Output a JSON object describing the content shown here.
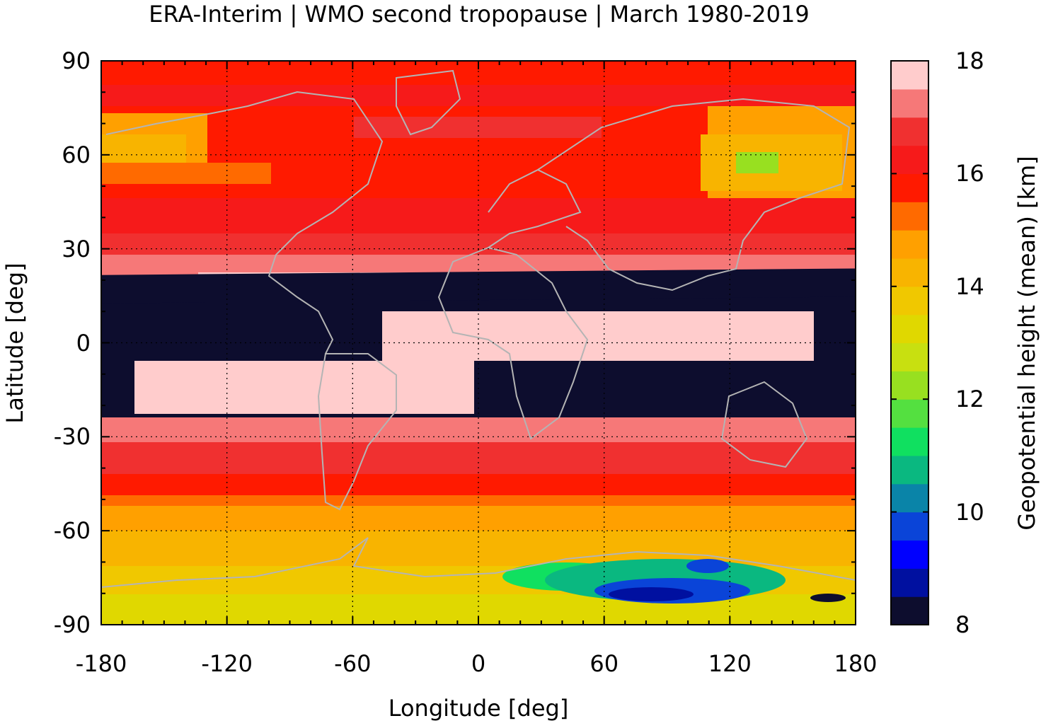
{
  "title": "ERA-Interim | WMO second tropopause | March 1980-2019",
  "map": {
    "xlabel": "Longitude [deg]",
    "ylabel": "Latitude [deg]",
    "xticks": [
      "-180",
      "-120",
      "-60",
      "0",
      "60",
      "120",
      "180"
    ],
    "yticks": [
      "90",
      "60",
      "30",
      "0",
      "-30",
      "-60",
      "-90"
    ],
    "xlim": [
      -180,
      180
    ],
    "ylim": [
      -90,
      90
    ],
    "grid": true,
    "coastline_color": "#b4b4b4"
  },
  "colorbar": {
    "label": "Geopotential height (mean) [km]",
    "ticks": [
      "18",
      "16",
      "14",
      "12",
      "10",
      "8"
    ],
    "range": [
      8,
      18
    ],
    "colors": [
      "#0d0d2e",
      "#0010a0",
      "#0000ff",
      "#0a44d8",
      "#0a84a8",
      "#0ab880",
      "#10e060",
      "#54e040",
      "#98e020",
      "#c8e010",
      "#e0d800",
      "#f0c800",
      "#f8b400",
      "#ffa000",
      "#ff6a00",
      "#ff1a00",
      "#f61a1a",
      "#f03030",
      "#f67878",
      "#ffcccc"
    ]
  }
}
